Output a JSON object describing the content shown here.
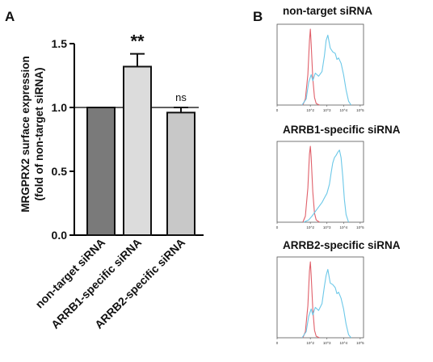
{
  "panel_a": {
    "letter": "A",
    "ylabel_line1": "MRGPRX2 surface expression",
    "ylabel_line2": "(fold of non-target siRNA)"
  },
  "panel_b": {
    "letter": "B",
    "x_tick_labels": [
      "0",
      "10^2",
      "10^3",
      "10^4",
      "10^5"
    ],
    "colors": {
      "red_trace": "#e0606a",
      "blue_trace": "#6cc8e8"
    },
    "histograms": [
      {
        "title": "non-target siRNA"
      },
      {
        "title": "ARRB1-specific siRNA"
      },
      {
        "title": "ARRB2-specific siRNA"
      }
    ]
  },
  "chart_data": [
    {
      "type": "bar",
      "categories": [
        "non-target siRNA",
        "ARRB1-specific siRNA",
        "ARRB2-specific siRNA"
      ],
      "values": [
        1.0,
        1.32,
        0.96
      ],
      "errors": [
        0,
        0.1,
        0.04
      ],
      "significance": [
        "",
        "**",
        "ns"
      ],
      "bar_colors": [
        "#7a7a7a",
        "#dcdcdc",
        "#c8c8c8"
      ],
      "ylabel": "MRGPRX2 surface expression (fold of non-target siRNA)",
      "ylim": [
        0,
        1.5
      ],
      "yticks": [
        "0.0",
        "0.5",
        "1.0",
        "1.5"
      ],
      "reference_line": 1.0
    },
    {
      "type": "line",
      "title": "non-target siRNA",
      "x_scale": "log",
      "series": [
        {
          "x": [
            1.55,
            1.7,
            1.85,
            1.95,
            2.0,
            2.05,
            2.15,
            2.25,
            2.35,
            2.55
          ],
          "y": [
            0,
            8,
            40,
            85,
            100,
            80,
            35,
            10,
            2,
            0
          ]
        },
        {
          "x": [
            1.5,
            1.75,
            1.9,
            2.05,
            2.15,
            2.3,
            2.5,
            2.7,
            2.85,
            2.95,
            3.05,
            3.2,
            3.35,
            3.5,
            3.6,
            3.7,
            3.85,
            4.0,
            4.15,
            4.3,
            4.45
          ],
          "y": [
            0,
            8,
            30,
            40,
            32,
            42,
            38,
            44,
            65,
            85,
            92,
            75,
            70,
            68,
            60,
            62,
            55,
            40,
            20,
            5,
            0
          ]
        }
      ]
    },
    {
      "type": "line",
      "title": "ARRB1-specific siRNA",
      "x_scale": "log",
      "series": [
        {
          "x": [
            1.55,
            1.7,
            1.85,
            1.95,
            2.0,
            2.05,
            2.15,
            2.25,
            2.35,
            2.55
          ],
          "y": [
            0,
            8,
            45,
            90,
            100,
            85,
            40,
            12,
            3,
            0
          ]
        },
        {
          "x": [
            1.6,
            1.9,
            2.1,
            2.3,
            2.5,
            2.7,
            2.85,
            3.0,
            3.15,
            3.25,
            3.35,
            3.45,
            3.55,
            3.65,
            3.75,
            3.85,
            3.95,
            4.05,
            4.15,
            4.3
          ],
          "y": [
            0,
            3,
            8,
            14,
            20,
            26,
            32,
            38,
            50,
            65,
            78,
            85,
            88,
            92,
            95,
            85,
            60,
            30,
            10,
            0
          ]
        }
      ]
    },
    {
      "type": "line",
      "title": "ARRB2-specific siRNA",
      "x_scale": "log",
      "series": [
        {
          "x": [
            1.55,
            1.7,
            1.85,
            1.95,
            2.0,
            2.05,
            2.15,
            2.25,
            2.35,
            2.55
          ],
          "y": [
            0,
            8,
            42,
            88,
            100,
            82,
            38,
            10,
            2,
            0
          ]
        },
        {
          "x": [
            1.5,
            1.75,
            1.9,
            2.05,
            2.15,
            2.3,
            2.5,
            2.7,
            2.85,
            2.95,
            3.05,
            3.2,
            3.35,
            3.5,
            3.6,
            3.7,
            3.85,
            4.0,
            4.15,
            4.3,
            4.45
          ],
          "y": [
            0,
            8,
            28,
            38,
            30,
            40,
            36,
            45,
            68,
            82,
            90,
            72,
            70,
            66,
            58,
            60,
            52,
            38,
            18,
            4,
            0
          ]
        }
      ]
    }
  ]
}
